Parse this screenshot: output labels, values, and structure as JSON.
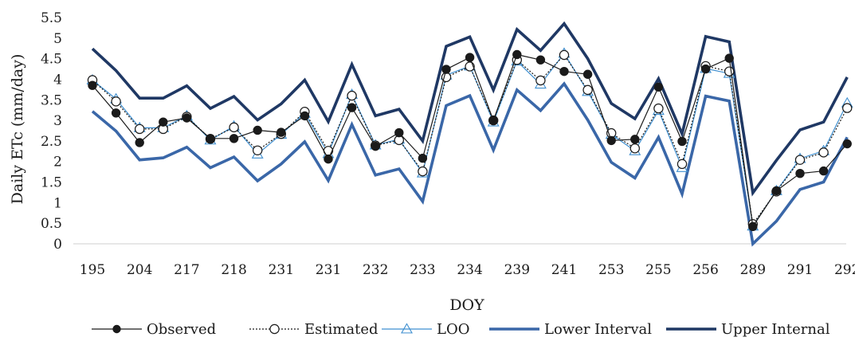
{
  "chart_data": {
    "type": "line",
    "title": "",
    "xlabel": "DOY",
    "ylabel": "Daily ETc (mm/day)",
    "ylim": [
      0,
      5.5
    ],
    "yticks": [
      "0",
      "0.5",
      "1",
      "1.5",
      "2",
      "2.5",
      "3",
      "3.5",
      "4",
      "4.5",
      "5",
      "5.5"
    ],
    "grid": false,
    "legend_position": "bottom",
    "x_tick_labels": [
      "195",
      "204",
      "217",
      "218",
      "231",
      "231",
      "232",
      "233",
      "234",
      "239",
      "241",
      "253",
      "255",
      "256",
      "289",
      "291",
      "292"
    ],
    "series": [
      {
        "name": "Observed",
        "color": "#1a1a1a",
        "marker": "filled-circle",
        "values": [
          3.85,
          3.18,
          2.46,
          2.96,
          3.06,
          2.56,
          2.56,
          2.76,
          2.71,
          3.11,
          2.06,
          3.31,
          2.37,
          2.7,
          2.08,
          4.24,
          4.53,
          3.0,
          4.6,
          4.47,
          4.19,
          4.12,
          2.51,
          2.54,
          3.81,
          2.49,
          4.25,
          4.51,
          0.42,
          1.29,
          1.71,
          1.77,
          2.43
        ]
      },
      {
        "name": "Estimated",
        "color": "#1a1a1a",
        "marker": "open-circle",
        "values": [
          3.98,
          3.46,
          2.79,
          2.79,
          3.09,
          2.55,
          2.83,
          2.27,
          2.67,
          3.21,
          2.26,
          3.6,
          2.39,
          2.52,
          1.76,
          4.05,
          4.31,
          3.0,
          4.47,
          3.97,
          4.59,
          3.74,
          2.69,
          2.32,
          3.29,
          1.94,
          4.32,
          4.19,
          0.48,
          1.27,
          2.04,
          2.22,
          3.3
        ]
      },
      {
        "name": "LOO",
        "color": "#3f8fd0",
        "marker": "open-triangle",
        "values": [
          3.98,
          3.52,
          2.82,
          2.82,
          3.11,
          2.52,
          2.86,
          2.18,
          2.66,
          3.17,
          2.19,
          3.63,
          2.4,
          2.54,
          1.72,
          4.1,
          4.32,
          2.96,
          4.44,
          3.88,
          4.63,
          3.7,
          2.66,
          2.26,
          3.24,
          1.85,
          4.26,
          4.14,
          0.43,
          1.29,
          2.07,
          2.26,
          3.42
        ]
      },
      {
        "name": "Lower Interval",
        "color": "#3a67a8",
        "marker": "none",
        "values": [
          3.22,
          2.74,
          2.04,
          2.09,
          2.35,
          1.85,
          2.11,
          1.53,
          1.94,
          2.48,
          1.54,
          2.9,
          1.67,
          1.82,
          1.03,
          3.36,
          3.6,
          2.28,
          3.74,
          3.24,
          3.89,
          3.01,
          1.98,
          1.6,
          2.59,
          1.21,
          3.59,
          3.47,
          0.0,
          0.55,
          1.32,
          1.5,
          2.59
        ]
      },
      {
        "name": "Upper Internal",
        "color": "#1f3864",
        "marker": "none",
        "values": [
          4.74,
          4.21,
          3.54,
          3.54,
          3.84,
          3.29,
          3.58,
          3.01,
          3.4,
          3.98,
          2.97,
          4.36,
          3.11,
          3.27,
          2.5,
          4.8,
          5.03,
          3.74,
          5.21,
          4.7,
          5.35,
          4.5,
          3.41,
          3.04,
          4.01,
          2.67,
          5.04,
          4.91,
          1.24,
          2.03,
          2.77,
          2.96,
          4.05
        ]
      }
    ]
  }
}
